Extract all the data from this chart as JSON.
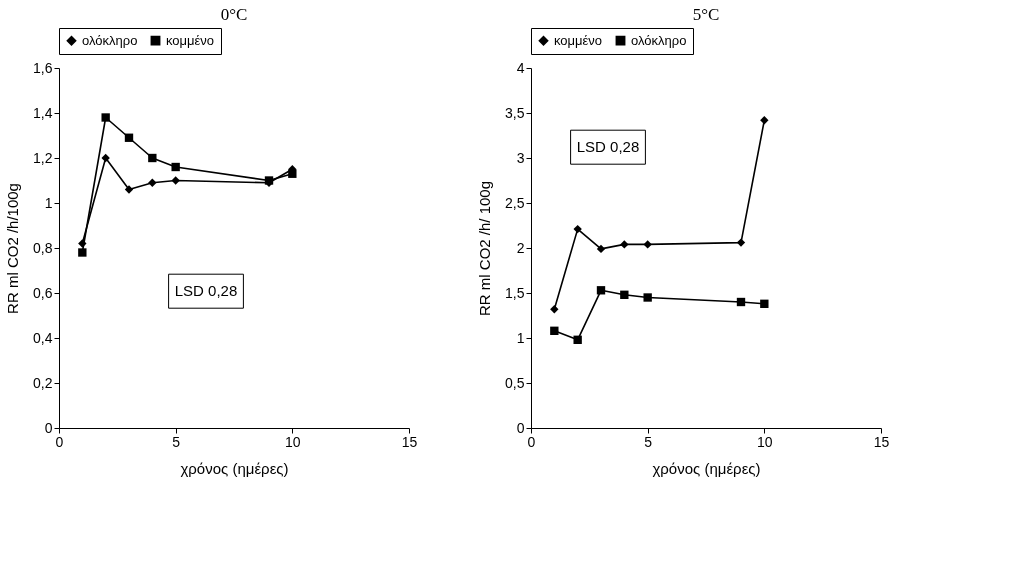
{
  "chart_data": [
    {
      "type": "line",
      "title": "0°C",
      "xlabel": "χρόνος (ημέρες)",
      "ylabel": "RR ml CO2 /h/100g",
      "legend": "top",
      "grid": false,
      "line_style": "solid",
      "x": [
        1,
        2,
        3,
        4,
        5,
        9,
        10
      ],
      "series": [
        {
          "name": "ολόκληρο",
          "color": "#000000",
          "marker": "diamond",
          "values": [
            0.82,
            1.2,
            1.06,
            1.09,
            1.1,
            1.09,
            1.15
          ]
        },
        {
          "name": "κομμένο",
          "color": "#000000",
          "marker": "square",
          "values": [
            0.78,
            1.38,
            1.29,
            1.2,
            1.16,
            1.1,
            1.13
          ]
        }
      ],
      "xlim": [
        0,
        15
      ],
      "xticks": [
        0,
        5,
        10,
        15
      ],
      "ylim": [
        0,
        1.6
      ],
      "yticks": [
        0,
        {
          "value": 0.2,
          "label": "0,2"
        },
        {
          "value": 0.4,
          "label": "0,4"
        },
        {
          "value": 0.6,
          "label": "0,6"
        },
        {
          "value": 0.8,
          "label": "0,8"
        },
        1,
        {
          "value": 1.2,
          "label": "1,2"
        },
        {
          "value": 1.4,
          "label": "1,4"
        },
        {
          "value": 1.6,
          "label": "1,6"
        }
      ],
      "annotations": [
        "LSD 0,28"
      ]
    },
    {
      "type": "line",
      "title": "5°C",
      "xlabel": "χρόνος (ημέρες)",
      "ylabel": "RR ml CO2 /h/ 100g",
      "legend": "top",
      "grid": false,
      "line_style": "solid",
      "x": [
        1,
        2,
        3,
        4,
        5,
        9,
        10
      ],
      "series": [
        {
          "name": "κομμένο",
          "color": "#000000",
          "marker": "diamond",
          "values": [
            1.32,
            2.21,
            1.99,
            2.04,
            2.04,
            2.06,
            3.42
          ]
        },
        {
          "name": "ολόκληρο",
          "color": "#000000",
          "marker": "square",
          "values": [
            1.08,
            0.98,
            1.53,
            1.48,
            1.45,
            1.4,
            1.38
          ]
        }
      ],
      "xlim": [
        0,
        15
      ],
      "xticks": [
        0,
        5,
        10,
        15
      ],
      "ylim": [
        0,
        4
      ],
      "yticks": [
        0,
        {
          "value": 0.5,
          "label": "0,5"
        },
        1,
        {
          "value": 1.5,
          "label": "1,5"
        },
        2,
        {
          "value": 2.5,
          "label": "2,5"
        },
        3,
        {
          "value": 3.5,
          "label": "3,5"
        },
        4
      ],
      "annotations": [
        "LSD 0,28"
      ]
    }
  ]
}
